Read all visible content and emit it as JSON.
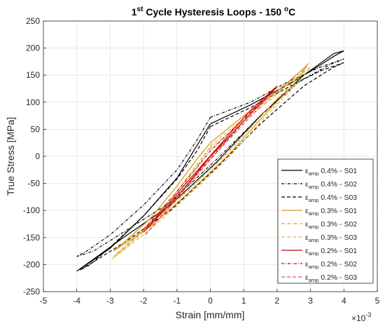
{
  "chart_data": {
    "type": "line",
    "title": "1st Cycle Hysteresis Loops - 150 oC",
    "title_parts": {
      "pre": "1",
      "sup1": "st",
      "mid": " Cycle Hysteresis Loops - 150 ",
      "sup2": "o",
      "post": "C"
    },
    "xlabel": "Strain [mm/mm]",
    "ylabel": "True Stress [MPa]",
    "x_multiplier_label": "×10",
    "x_multiplier_exp": "-3",
    "xlim": [
      -5,
      5
    ],
    "ylim": [
      -250,
      250
    ],
    "xticks": [
      "-5",
      "-4",
      "-3",
      "-2",
      "-1",
      "0",
      "1",
      "2",
      "3",
      "4",
      "5"
    ],
    "yticks": [
      "250",
      "200",
      "150",
      "100",
      "50",
      "0",
      "-50",
      "-100",
      "-150",
      "-200",
      "-250"
    ],
    "grid": true,
    "legend_position": "bottom-right",
    "series": [
      {
        "name": "0.4% - S01",
        "symbol": "ε",
        "sub": "amp",
        "label": "0.4% - S01",
        "color": "#000000",
        "dash": "",
        "x": [
          0,
          1.2,
          2.4,
          3.2,
          3.7,
          4.0,
          3.7,
          2.8,
          1.5,
          0.2,
          -1.2,
          -2.6,
          -3.5,
          -4.0,
          -3.7,
          -3.0,
          -2.0,
          -1.0,
          -0.5,
          0
        ],
        "y": [
          60,
          95,
          135,
          165,
          185,
          195,
          190,
          150,
          75,
          -10,
          -90,
          -150,
          -190,
          -212,
          -200,
          -170,
          -110,
          -40,
          10,
          60
        ]
      },
      {
        "name": "0.4% - S02",
        "symbol": "ε",
        "sub": "amp",
        "label": "0.4% - S02",
        "color": "#000000",
        "dash": "4,2,1,2",
        "x": [
          0,
          1.2,
          2.4,
          3.3,
          4.0,
          3.6,
          2.7,
          1.5,
          0.2,
          -1.2,
          -2.6,
          -3.5,
          -4.0,
          -3.7,
          -3.0,
          -2.0,
          -1.0,
          -0.4,
          0
        ],
        "y": [
          72,
          100,
          140,
          165,
          180,
          170,
          140,
          75,
          -5,
          -85,
          -140,
          -175,
          -185,
          -175,
          -145,
          -90,
          -25,
          30,
          72
        ]
      },
      {
        "name": "0.4% - S03",
        "symbol": "ε",
        "sub": "amp",
        "label": "0.4% - S03",
        "color": "#000000",
        "dash": "5,3",
        "x": [
          0,
          1.2,
          2.4,
          3.3,
          4.0,
          3.7,
          2.8,
          1.5,
          0.2,
          -1.2,
          -2.6,
          -3.5,
          -3.9,
          -3.6,
          -3.0,
          -2.0,
          -1.0,
          -0.4,
          0
        ],
        "y": [
          55,
          90,
          130,
          158,
          173,
          165,
          130,
          60,
          -20,
          -100,
          -160,
          -195,
          -210,
          -200,
          -168,
          -110,
          -42,
          10,
          55
        ]
      },
      {
        "name": "0.3% - S01",
        "symbol": "ε",
        "sub": "amp",
        "label": "0.3% - S01",
        "color": "#d4960a",
        "dash": "",
        "x": [
          0,
          1.0,
          2.0,
          2.9,
          2.6,
          1.6,
          0.5,
          -0.7,
          -1.8,
          -2.9,
          -2.6,
          -1.8,
          -1.0,
          -0.4,
          0
        ],
        "y": [
          25,
          75,
          120,
          168,
          140,
          75,
          0,
          -70,
          -130,
          -175,
          -160,
          -115,
          -55,
          -5,
          25
        ]
      },
      {
        "name": "0.3% - S02",
        "symbol": "ε",
        "sub": "amp",
        "label": "0.3% - S02",
        "color": "#d4960a",
        "dash": "4,2,1,2",
        "x": [
          0,
          1.0,
          2.0,
          2.95,
          2.6,
          1.6,
          0.5,
          -0.7,
          -1.8,
          -2.9,
          -2.6,
          -1.8,
          -1.0,
          -0.4,
          0
        ],
        "y": [
          15,
          65,
          115,
          172,
          145,
          80,
          5,
          -65,
          -125,
          -185,
          -170,
          -125,
          -65,
          -15,
          15
        ]
      },
      {
        "name": "0.3% - S03",
        "symbol": "ε",
        "sub": "amp",
        "label": "0.3% - S03",
        "color": "#e8b04a",
        "dash": "5,3",
        "x": [
          0,
          1.0,
          2.0,
          3.0,
          2.6,
          1.6,
          0.5,
          -0.7,
          -1.8,
          -2.95,
          -2.6,
          -1.8,
          -1.0,
          -0.4,
          0
        ],
        "y": [
          20,
          70,
          118,
          165,
          135,
          70,
          -5,
          -75,
          -135,
          -190,
          -172,
          -128,
          -70,
          -20,
          20
        ]
      },
      {
        "name": "0.2% - S01",
        "symbol": "ε",
        "sub": "amp",
        "label": "0.2% - S01",
        "color": "#cc0000",
        "dash": "",
        "x": [
          -2.0,
          -1.0,
          0,
          1.0,
          2.0,
          1.2,
          0.2,
          -0.8,
          -2.0
        ],
        "y": [
          -140,
          -75,
          0,
          65,
          130,
          85,
          15,
          -55,
          -140
        ]
      },
      {
        "name": "0.2% - S02",
        "symbol": "ε",
        "sub": "amp",
        "label": "0.2% - S02",
        "color": "#cc0000",
        "dash": "4,2,1,2",
        "x": [
          -2.0,
          -1.0,
          0,
          1.0,
          1.95,
          1.2,
          0.2,
          -0.8,
          -2.0
        ],
        "y": [
          -135,
          -65,
          10,
          70,
          125,
          80,
          10,
          -60,
          -135
        ]
      },
      {
        "name": "0.2% - S03",
        "symbol": "ε",
        "sub": "amp",
        "label": "0.2% - S03",
        "color": "#e05050",
        "dash": "5,3",
        "x": [
          -1.95,
          -1.0,
          0,
          1.0,
          1.9,
          1.2,
          0.2,
          -0.8,
          -1.95
        ],
        "y": [
          -145,
          -78,
          -5,
          60,
          120,
          78,
          8,
          -62,
          -145
        ]
      }
    ]
  }
}
